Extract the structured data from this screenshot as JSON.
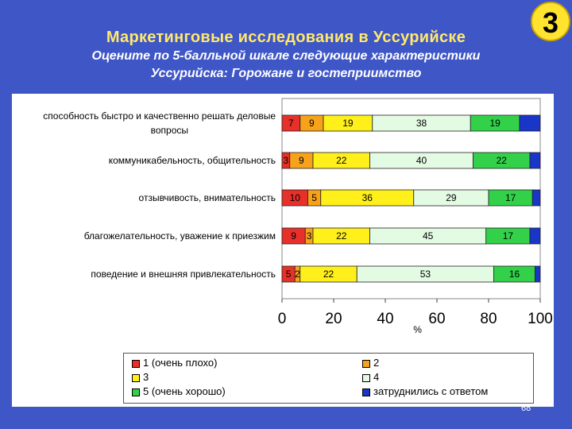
{
  "header": {
    "title": "Маркетинговые исследования в Уссурийске",
    "subtitle_line1": "Оцените по 5-балльной шкале следующие характеристики",
    "subtitle_line2": "Уссурийска: Горожане и гостеприимство",
    "badge": "3"
  },
  "page_number": "68",
  "chart_data": {
    "type": "bar",
    "orientation": "horizontal",
    "stacked": true,
    "categories": [
      "способность быстро и качественно решать деловые вопросы",
      "коммуникабельность, общительность",
      "отзывчивость, внимательность",
      "благожелательность, уважение к приезжим",
      "поведение и внешняя привлекательность"
    ],
    "category_lines": [
      [
        "способность быстро и качественно решать деловые",
        "вопросы"
      ],
      [
        "коммуникабельность, общительность"
      ],
      [
        "отзывчивость, внимательность"
      ],
      [
        "благожелательность, уважение к приезжим"
      ],
      [
        "поведение и внешняя привлекательность"
      ]
    ],
    "series": [
      {
        "name": "1 (очень плохо)",
        "color": "#e8302a",
        "values": [
          7,
          3,
          10,
          9,
          5
        ]
      },
      {
        "name": "2",
        "color": "#f7a21b",
        "values": [
          9,
          9,
          5,
          3,
          2
        ]
      },
      {
        "name": "3",
        "color": "#ffef1a",
        "values": [
          19,
          22,
          36,
          22,
          22
        ]
      },
      {
        "name": "4",
        "color": "#e3fae3",
        "values": [
          38,
          40,
          29,
          45,
          53
        ]
      },
      {
        "name": "5 (очень хорошо)",
        "color": "#33d14a",
        "values": [
          19,
          22,
          17,
          17,
          16
        ]
      },
      {
        "name": "затруднились с ответом",
        "color": "#1a36c9",
        "values": [
          8,
          4,
          3,
          4,
          2
        ]
      }
    ],
    "xlim": [
      0,
      100
    ],
    "xticks": [
      0,
      20,
      40,
      60,
      80,
      100
    ],
    "xlabel": "%",
    "legend": "bottom"
  }
}
